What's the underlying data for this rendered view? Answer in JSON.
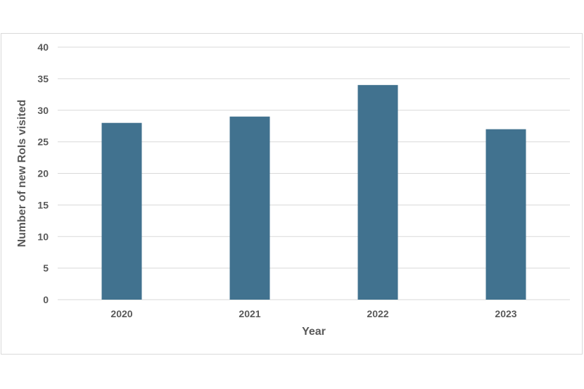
{
  "chart_data": {
    "type": "bar",
    "categories": [
      "2020",
      "2021",
      "2022",
      "2023"
    ],
    "values": [
      28,
      29,
      34,
      27
    ],
    "title": "",
    "xlabel": "Year",
    "ylabel": "Number of new RoIs visited",
    "ylim": [
      0,
      40
    ],
    "yticks": [
      "0",
      "5",
      "10",
      "15",
      "20",
      "25",
      "30",
      "35",
      "40"
    ],
    "grid": true,
    "legend": "none",
    "bar_color": "#41728f",
    "text_color": "#595959",
    "grid_color": "#d9d9d9"
  }
}
